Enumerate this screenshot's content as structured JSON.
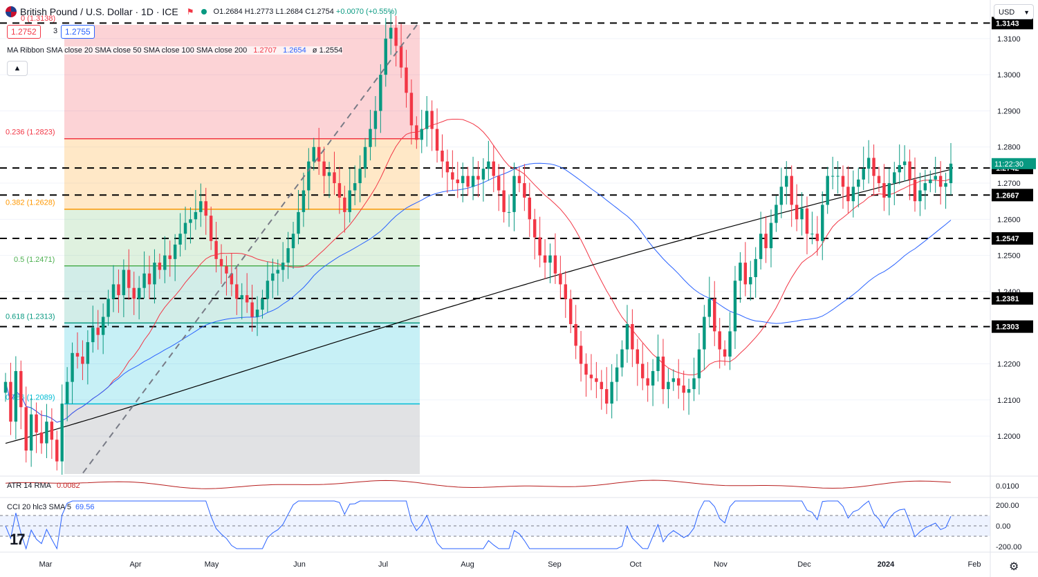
{
  "header": {
    "symbol_title": "British Pound / U.S. Dollar · 1D · ICE",
    "open": "O1.2684",
    "high": "H1.2773",
    "low": "L1.2684",
    "close": "C1.2754",
    "change": "+0.0070 (+0.55%)",
    "bid": "1.2752",
    "spread": "3",
    "ask": "1.2755",
    "currency": "USD",
    "collapse_icon": "chevron-up-icon",
    "flag_icon": "red-flag-icon"
  },
  "ma_ribbon": {
    "label": "MA Ribbon SMA close 20 SMA close 50 SMA close 100 SMA close 200",
    "v20": "1.2707",
    "v50": "1.2654",
    "v200": "ø 1.2554"
  },
  "indicators": {
    "atr_label": "ATR 14 RMA",
    "atr_value": "0.0082",
    "cci_label": "CCI 20 hlc3 SMA 5",
    "cci_value": "69.56"
  },
  "colors": {
    "up": "#089981",
    "down": "#f23645",
    "sma20": "#f23645",
    "sma50": "#2962ff",
    "sma200": "#000000",
    "atr": "#b71c1c",
    "cci": "#2962ff"
  },
  "chart_data": {
    "type": "candlestick",
    "title": "British Pound / U.S. Dollar · 1D · ICE",
    "price_axis": {
      "ticks": [
        "1.3100",
        "1.3000",
        "1.2900",
        "1.2800",
        "1.2700",
        "1.2600",
        "1.2500",
        "1.2400",
        "1.2300",
        "1.2200",
        "1.2100",
        "1.2000"
      ],
      "range": [
        1.1895,
        1.314
      ]
    },
    "time_axis": {
      "labels": [
        "Mar",
        "Apr",
        "May",
        "Jun",
        "Jul",
        "Aug",
        "Sep",
        "Oct",
        "Nov",
        "Dec",
        "2024",
        "Feb"
      ]
    },
    "horizontal_levels": [
      1.3143,
      1.2742,
      1.2667,
      1.2547,
      1.2381,
      1.2303
    ],
    "level_labels": [
      "1.3143",
      "1.2742",
      "1.2667",
      "1.2547",
      "1.2381",
      "1.2303"
    ],
    "countdown_label": "11:22:30",
    "fibonacci": {
      "levels": [
        {
          "ratio_label": "0 (1.3138)",
          "price": 1.3138,
          "color": "#f23645"
        },
        {
          "ratio_label": "0.236 (1.2823)",
          "price": 1.2823,
          "color": "#f23645"
        },
        {
          "ratio_label": "0.382 (1.2628)",
          "price": 1.2628,
          "color": "#ff9800"
        },
        {
          "ratio_label": "0.5 (1.2471)",
          "price": 1.2471,
          "color": "#4caf50"
        },
        {
          "ratio_label": "0.618 (1.2313)",
          "price": 1.2313,
          "color": "#089981"
        },
        {
          "ratio_label": "0.786 (1.2089)",
          "price": 1.2089,
          "color": "#00bcd4"
        }
      ],
      "bottom_price": 1.1895
    },
    "trendline": {
      "from": [
        1.1898
      ],
      "to": [
        1.3138
      ]
    },
    "series_close": [
      1.215,
      1.204,
      1.218,
      1.208,
      1.196,
      1.206,
      1.201,
      1.198,
      1.204,
      1.199,
      1.193,
      1.209,
      1.215,
      1.223,
      1.222,
      1.22,
      1.226,
      1.23,
      1.228,
      1.233,
      1.238,
      1.242,
      1.239,
      1.246,
      1.241,
      1.238,
      1.241,
      1.245,
      1.242,
      1.248,
      1.246,
      1.25,
      1.249,
      1.253,
      1.256,
      1.259,
      1.26,
      1.262,
      1.265,
      1.261,
      1.254,
      1.249,
      1.247,
      1.245,
      1.242,
      1.238,
      1.239,
      1.237,
      1.233,
      1.235,
      1.238,
      1.243,
      1.245,
      1.246,
      1.248,
      1.252,
      1.256,
      1.262,
      1.268,
      1.276,
      1.28,
      1.276,
      1.272,
      1.273,
      1.27,
      1.266,
      1.262,
      1.268,
      1.27,
      1.274,
      1.28,
      1.285,
      1.29,
      1.3,
      1.31,
      1.313,
      1.308,
      1.302,
      1.295,
      1.286,
      1.282,
      1.285,
      1.29,
      1.285,
      1.279,
      1.276,
      1.273,
      1.271,
      1.27,
      1.272,
      1.269,
      1.272,
      1.271,
      1.274,
      1.276,
      1.272,
      1.268,
      1.262,
      1.262,
      1.272,
      1.27,
      1.266,
      1.26,
      1.255,
      1.25,
      1.248,
      1.25,
      1.245,
      1.242,
      1.238,
      1.231,
      1.225,
      1.22,
      1.217,
      1.216,
      1.215,
      1.213,
      1.209,
      1.215,
      1.219,
      1.224,
      1.231,
      1.224,
      1.22,
      1.216,
      1.214,
      1.218,
      1.222,
      1.213,
      1.215,
      1.216,
      1.214,
      1.212,
      1.213,
      1.216,
      1.224,
      1.233,
      1.238,
      1.229,
      1.224,
      1.222,
      1.229,
      1.243,
      1.248,
      1.242,
      1.244,
      1.249,
      1.256,
      1.252,
      1.259,
      1.264,
      1.269,
      1.272,
      1.264,
      1.26,
      1.263,
      1.256,
      1.256,
      1.254,
      1.264,
      1.272,
      1.272,
      1.272,
      1.269,
      1.265,
      1.269,
      1.271,
      1.274,
      1.277,
      1.272,
      1.27,
      1.266,
      1.27,
      1.273,
      1.275,
      1.276,
      1.271,
      1.265,
      1.268,
      1.27,
      1.271,
      1.272,
      1.269,
      1.27,
      1.2754
    ]
  }
}
